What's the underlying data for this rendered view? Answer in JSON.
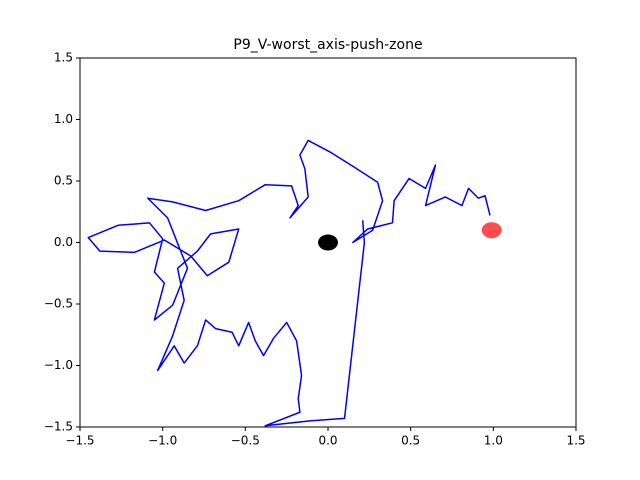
{
  "chart_data": {
    "type": "line",
    "title": "P9_V-worst_axis-push-zone",
    "xlim": [
      -1.5,
      1.5
    ],
    "ylim": [
      -1.5,
      1.5
    ],
    "xticks": [
      {
        "value": -1.5,
        "label": "−1.5"
      },
      {
        "value": -1.0,
        "label": "−1.0"
      },
      {
        "value": -0.5,
        "label": "−0.5"
      },
      {
        "value": 0,
        "label": "0.0"
      },
      {
        "value": 0.5,
        "label": "0.5"
      },
      {
        "value": 1.0,
        "label": "1.0"
      },
      {
        "value": 1.5,
        "label": "1.5"
      }
    ],
    "yticks": [
      {
        "value": -1.5,
        "label": "−1.5"
      },
      {
        "value": -1.0,
        "label": "−1.0"
      },
      {
        "value": -0.5,
        "label": "−0.5"
      },
      {
        "value": 0,
        "label": "0.0"
      },
      {
        "value": 0.5,
        "label": "0.5"
      },
      {
        "value": 1.0,
        "label": "1.0"
      },
      {
        "value": 1.5,
        "label": "1.5"
      }
    ],
    "series": [
      {
        "color": "#0000ff",
        "x": [
          0.21,
          0.22,
          0.1,
          -0.11,
          -0.38,
          -0.17,
          -0.18,
          -0.16,
          -0.19,
          -0.25,
          -0.33,
          -0.39,
          -0.44,
          -0.48,
          -0.54,
          -0.58,
          -0.68,
          -0.74,
          -0.79,
          -0.87,
          -0.93,
          -1.03,
          -0.94,
          -0.87,
          -0.91,
          -0.79,
          -0.71,
          -0.54,
          -0.6,
          -0.73,
          -0.83,
          -0.99,
          -1.17,
          -1.38,
          -1.45,
          -1.27,
          -1.08,
          -1.0,
          -1.05,
          -0.99,
          -1.05,
          -0.94,
          -0.85,
          -0.97,
          -1.09,
          -0.94,
          -0.74,
          -0.54,
          -0.38,
          -0.22,
          -0.18,
          -0.23,
          -0.12,
          -0.14,
          -0.17,
          -0.12,
          0.02,
          0.15,
          0.3,
          0.33,
          0.27,
          0.15,
          0.24,
          0.39,
          0.4,
          0.49,
          0.59,
          0.65,
          0.59,
          0.71,
          0.81,
          0.85,
          0.91,
          0.95,
          0.98
        ],
        "y": [
          0.18,
          0.0,
          -1.43,
          -1.45,
          -1.49,
          -1.38,
          -1.27,
          -1.08,
          -0.8,
          -0.65,
          -0.78,
          -0.92,
          -0.8,
          -0.65,
          -0.84,
          -0.73,
          -0.7,
          -0.63,
          -0.84,
          -0.98,
          -0.84,
          -1.04,
          -0.76,
          -0.47,
          -0.21,
          -0.07,
          0.07,
          0.11,
          -0.16,
          -0.27,
          -0.11,
          0.02,
          -0.08,
          -0.07,
          0.04,
          0.14,
          0.16,
          0.03,
          -0.24,
          -0.33,
          -0.63,
          -0.51,
          -0.21,
          0.2,
          0.36,
          0.33,
          0.26,
          0.34,
          0.47,
          0.46,
          0.3,
          0.2,
          0.37,
          0.6,
          0.71,
          0.83,
          0.73,
          0.62,
          0.49,
          0.34,
          0.1,
          0.0,
          0.11,
          0.16,
          0.34,
          0.52,
          0.44,
          0.63,
          0.3,
          0.37,
          0.3,
          0.44,
          0.36,
          0.38,
          0.22
        ]
      }
    ],
    "points": [
      {
        "x": 0,
        "y": 0,
        "color": "#000000"
      },
      {
        "x": 0.99,
        "y": 0.1,
        "color": "#ff0000"
      }
    ]
  }
}
